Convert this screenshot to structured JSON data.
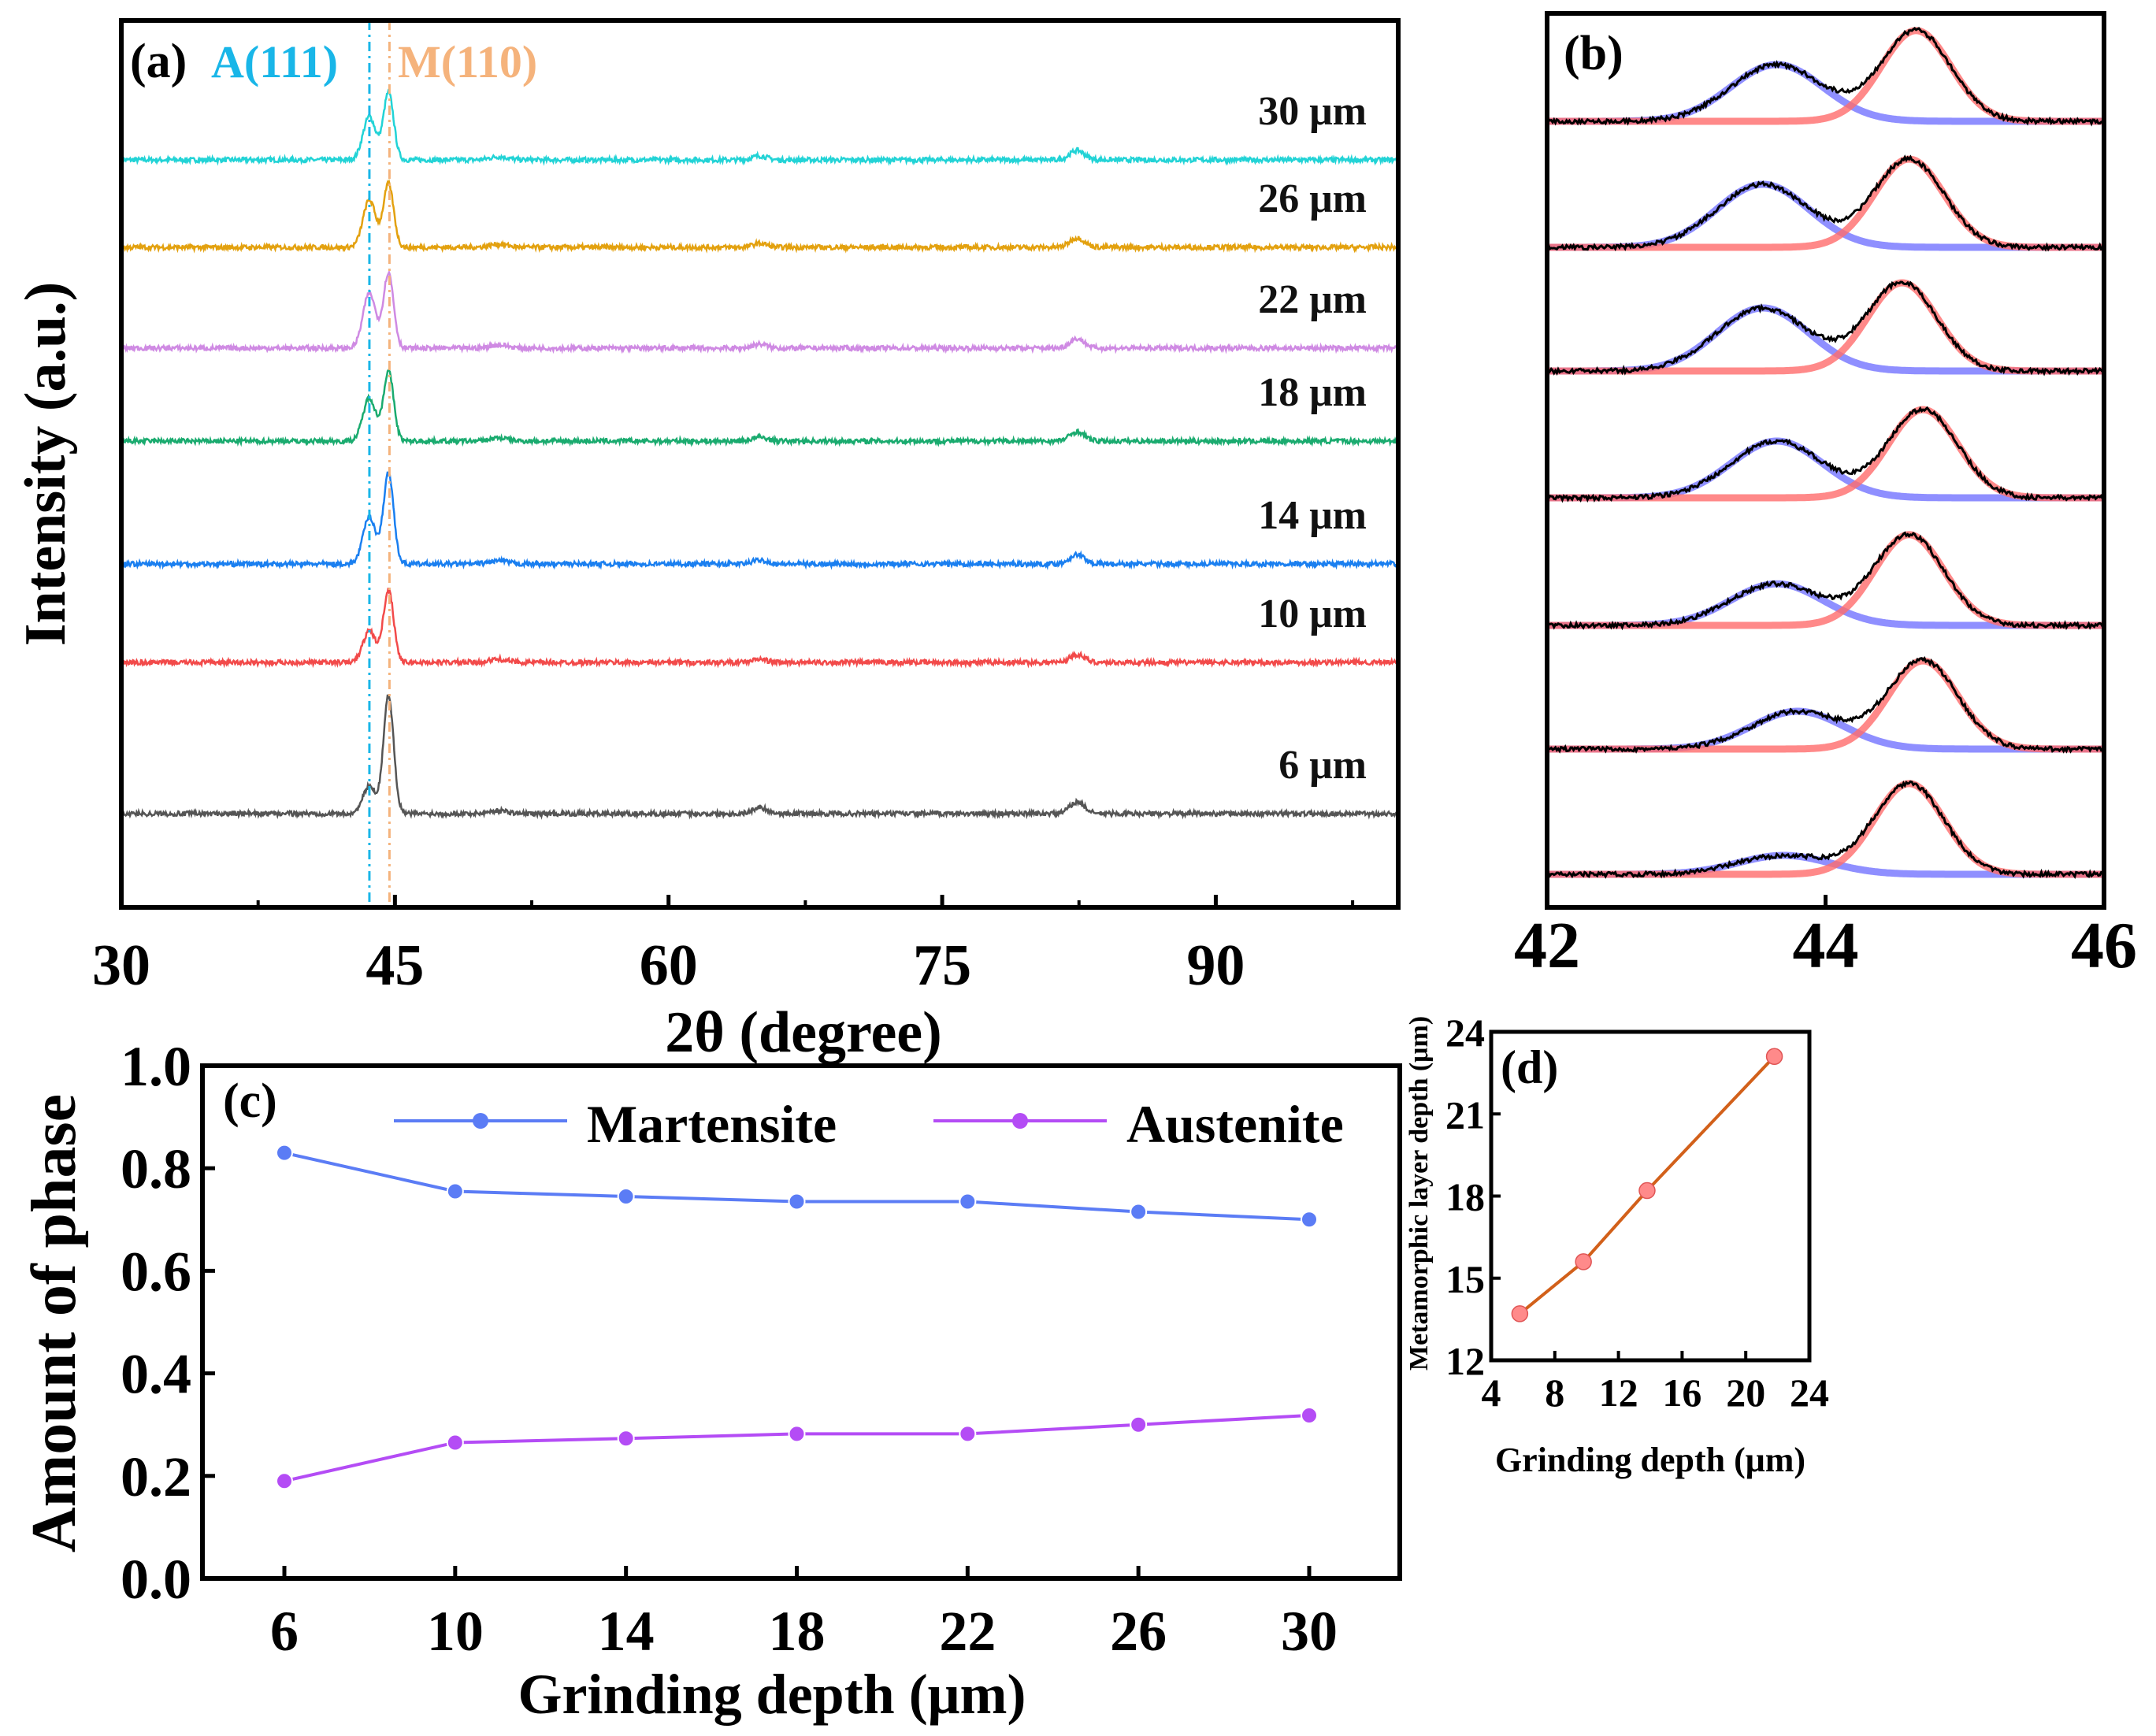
{
  "chart_data": [
    {
      "id": "a",
      "type": "line",
      "panel_label": "(a)",
      "xlabel": "2θ (degree)",
      "ylabel": "Intensity (a.u.)",
      "xlim": [
        30,
        100
      ],
      "xticks": [
        30,
        45,
        60,
        75,
        90
      ],
      "annotations": [
        {
          "text": "A(111)",
          "x": 43.6,
          "color": "#19b6e8"
        },
        {
          "text": "M(110)",
          "x": 44.7,
          "color": "#f5b37c"
        }
      ],
      "series": [
        {
          "name": "30 μm",
          "color": "#22d3d6",
          "peaks": {
            "A111": 0.55,
            "M110": 0.85,
            "minor_65": 0.05,
            "minor_82": 0.12
          }
        },
        {
          "name": "26 μm",
          "color": "#e3a10f",
          "peaks": {
            "A111": 0.6,
            "M110": 0.8,
            "minor_65": 0.05,
            "minor_82": 0.12
          }
        },
        {
          "name": "22 μm",
          "color": "#cf8ae3",
          "peaks": {
            "A111": 0.7,
            "M110": 0.95,
            "minor_65": 0.05,
            "minor_82": 0.12
          }
        },
        {
          "name": "18 μm",
          "color": "#1aab6f",
          "peaks": {
            "A111": 0.55,
            "M110": 0.88,
            "minor_65": 0.05,
            "minor_82": 0.12
          }
        },
        {
          "name": "14 μm",
          "color": "#1a7ff0",
          "peaks": {
            "A111": 0.6,
            "M110": 1.15,
            "minor_65": 0.05,
            "minor_82": 0.12
          }
        },
        {
          "name": "10 μm",
          "color": "#f24a4a",
          "peaks": {
            "A111": 0.4,
            "M110": 0.92,
            "minor_65": 0.04,
            "minor_82": 0.1
          }
        },
        {
          "name": "6 μm",
          "color": "#555555",
          "peaks": {
            "A111": 0.35,
            "M110": 1.5,
            "minor_65": 0.08,
            "minor_82": 0.15
          }
        }
      ]
    },
    {
      "id": "b",
      "type": "line",
      "panel_label": "(b)",
      "xlim": [
        42,
        46
      ],
      "xticks": [
        42,
        44,
        46
      ],
      "fit_colors": {
        "austenite_fit": "#6a6aff",
        "martensite_fit": "#ff6b6b",
        "measured": "#000000"
      },
      "traces": [
        {
          "A_center": 43.65,
          "A_height": 0.45,
          "M_center": 44.65,
          "M_height": 0.72
        },
        {
          "A_center": 43.55,
          "A_height": 0.5,
          "M_center": 44.6,
          "M_height": 0.7
        },
        {
          "A_center": 43.55,
          "A_height": 0.5,
          "M_center": 44.55,
          "M_height": 0.7
        },
        {
          "A_center": 43.65,
          "A_height": 0.45,
          "M_center": 44.7,
          "M_height": 0.7
        },
        {
          "A_center": 43.65,
          "A_height": 0.33,
          "M_center": 44.6,
          "M_height": 0.72
        },
        {
          "A_center": 43.8,
          "A_height": 0.3,
          "M_center": 44.7,
          "M_height": 0.7
        },
        {
          "A_center": 43.7,
          "A_height": 0.15,
          "M_center": 44.6,
          "M_height": 0.72
        }
      ]
    },
    {
      "id": "c",
      "type": "line",
      "panel_label": "(c)",
      "xlabel": "Grinding depth (μm)",
      "ylabel": "Amount of phase",
      "xlim": [
        4,
        32
      ],
      "ylim": [
        0,
        1.0
      ],
      "xticks": [
        6,
        10,
        14,
        18,
        22,
        26,
        30
      ],
      "yticks": [
        "0.0",
        "0.2",
        "0.4",
        "0.6",
        "0.8",
        "1.0"
      ],
      "legend": "top-right",
      "x": [
        6,
        10,
        14,
        18,
        22,
        26,
        30
      ],
      "series": [
        {
          "name": "Martensite",
          "color": "#5b7cf5",
          "values": [
            0.83,
            0.755,
            0.745,
            0.735,
            0.735,
            0.715,
            0.7
          ]
        },
        {
          "name": "Austenite",
          "color": "#b44cf5",
          "values": [
            0.19,
            0.265,
            0.273,
            0.282,
            0.282,
            0.3,
            0.318
          ]
        }
      ]
    },
    {
      "id": "d",
      "type": "line",
      "panel_label": "(d)",
      "xlabel": "Grinding depth (μm)",
      "ylabel": "Metamorphic layer depth (μm)",
      "xlim": [
        4,
        24
      ],
      "ylim": [
        12,
        24
      ],
      "xticks": [
        4,
        8,
        12,
        16,
        20,
        24
      ],
      "yticks": [
        12,
        15,
        18,
        21,
        24
      ],
      "line_color": "#d2601a",
      "marker_color": "#ff8a8a",
      "x": [
        5.8,
        9.8,
        13.8,
        21.8
      ],
      "values": [
        13.7,
        15.6,
        18.2,
        23.1
      ]
    }
  ]
}
